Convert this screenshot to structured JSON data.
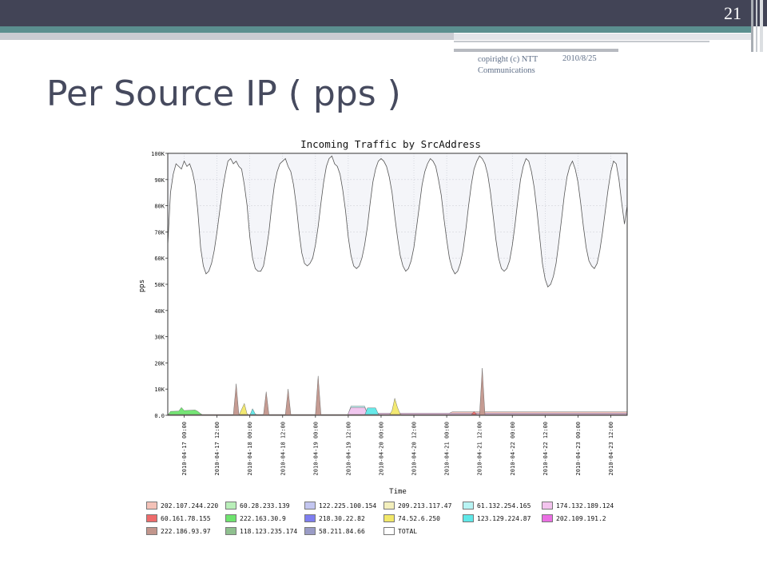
{
  "slide": {
    "number": "21",
    "copyright": "copiright (c) NTT Communications",
    "date": "2010/8/25",
    "title": "Per Source IP ( pps )"
  },
  "theme": {
    "header_dark": "#424456",
    "header_teal": "#5b8f8f",
    "title_color": "#464a5e"
  },
  "chart_data": {
    "type": "area",
    "title": "Incoming Traffic by SrcAddress",
    "xlabel": "Time",
    "ylabel": "pps",
    "ylim": [
      0,
      100000
    ],
    "grid": true,
    "legend_position": "bottom",
    "y_ticks": [
      {
        "value": 0,
        "label": "0.0"
      },
      {
        "value": 10000,
        "label": "10K"
      },
      {
        "value": 20000,
        "label": "20K"
      },
      {
        "value": 30000,
        "label": "30K"
      },
      {
        "value": 40000,
        "label": "40K"
      },
      {
        "value": 50000,
        "label": "50K"
      },
      {
        "value": 60000,
        "label": "60K"
      },
      {
        "value": 70000,
        "label": "70K"
      },
      {
        "value": 80000,
        "label": "80K"
      },
      {
        "value": 90000,
        "label": "90K"
      },
      {
        "value": 100000,
        "label": "100K"
      }
    ],
    "x_range_hours": [
      -6,
      162
    ],
    "x_ticks": [
      {
        "hour": 0,
        "label": "2010-04-17 00:00"
      },
      {
        "hour": 12,
        "label": "2010-04-17 12:00"
      },
      {
        "hour": 24,
        "label": "2010-04-18 00:00"
      },
      {
        "hour": 36,
        "label": "2010-04-18 12:00"
      },
      {
        "hour": 48,
        "label": "2010-04-19 00:00"
      },
      {
        "hour": 60,
        "label": "2010-04-19 12:00"
      },
      {
        "hour": 72,
        "label": "2010-04-20 00:00"
      },
      {
        "hour": 84,
        "label": "2010-04-20 12:00"
      },
      {
        "hour": 96,
        "label": "2010-04-21 00:00"
      },
      {
        "hour": 108,
        "label": "2010-04-21 12:00"
      },
      {
        "hour": 120,
        "label": "2010-04-22 00:00"
      },
      {
        "hour": 132,
        "label": "2010-04-22 12:00"
      },
      {
        "hour": 144,
        "label": "2010-04-23 00:00"
      },
      {
        "hour": 156,
        "label": "2010-04-23 12:00"
      }
    ],
    "total": {
      "name": "TOTAL",
      "points": [
        [
          -6,
          65000
        ],
        [
          -5,
          85000
        ],
        [
          -4,
          92000
        ],
        [
          -3,
          96000
        ],
        [
          -2,
          95000
        ],
        [
          -1,
          94000
        ],
        [
          0,
          97000
        ],
        [
          1,
          95000
        ],
        [
          2,
          96000
        ],
        [
          3,
          93000
        ],
        [
          4,
          88000
        ],
        [
          5,
          78000
        ],
        [
          6,
          64000
        ],
        [
          7,
          57000
        ],
        [
          8,
          54000
        ],
        [
          9,
          55000
        ],
        [
          10,
          58000
        ],
        [
          11,
          63000
        ],
        [
          12,
          70000
        ],
        [
          13,
          78000
        ],
        [
          14,
          86000
        ],
        [
          15,
          92000
        ],
        [
          16,
          97000
        ],
        [
          17,
          98000
        ],
        [
          18,
          96000
        ],
        [
          19,
          97000
        ],
        [
          20,
          95000
        ],
        [
          21,
          94000
        ],
        [
          22,
          88000
        ],
        [
          23,
          80000
        ],
        [
          24,
          68000
        ],
        [
          25,
          60000
        ],
        [
          26,
          56000
        ],
        [
          27,
          55000
        ],
        [
          28,
          55000
        ],
        [
          29,
          57000
        ],
        [
          30,
          63000
        ],
        [
          31,
          70000
        ],
        [
          32,
          80000
        ],
        [
          33,
          88000
        ],
        [
          34,
          93000
        ],
        [
          35,
          96000
        ],
        [
          36,
          97000
        ],
        [
          37,
          98000
        ],
        [
          38,
          95000
        ],
        [
          39,
          93000
        ],
        [
          40,
          88000
        ],
        [
          41,
          80000
        ],
        [
          42,
          70000
        ],
        [
          43,
          62000
        ],
        [
          44,
          58000
        ],
        [
          45,
          57000
        ],
        [
          46,
          58000
        ],
        [
          47,
          60000
        ],
        [
          48,
          65000
        ],
        [
          49,
          72000
        ],
        [
          50,
          81000
        ],
        [
          51,
          89000
        ],
        [
          52,
          95000
        ],
        [
          53,
          98000
        ],
        [
          54,
          99000
        ],
        [
          55,
          96000
        ],
        [
          56,
          95000
        ],
        [
          57,
          92000
        ],
        [
          58,
          86000
        ],
        [
          59,
          78000
        ],
        [
          60,
          68000
        ],
        [
          61,
          61000
        ],
        [
          62,
          57000
        ],
        [
          63,
          56000
        ],
        [
          64,
          57000
        ],
        [
          65,
          60000
        ],
        [
          66,
          65000
        ],
        [
          67,
          72000
        ],
        [
          68,
          81000
        ],
        [
          69,
          89000
        ],
        [
          70,
          94000
        ],
        [
          71,
          97000
        ],
        [
          72,
          98000
        ],
        [
          73,
          97000
        ],
        [
          74,
          95000
        ],
        [
          75,
          91000
        ],
        [
          76,
          85000
        ],
        [
          77,
          76000
        ],
        [
          78,
          68000
        ],
        [
          79,
          61000
        ],
        [
          80,
          57000
        ],
        [
          81,
          55000
        ],
        [
          82,
          56000
        ],
        [
          83,
          59000
        ],
        [
          84,
          64000
        ],
        [
          85,
          72000
        ],
        [
          86,
          80000
        ],
        [
          87,
          88000
        ],
        [
          88,
          93000
        ],
        [
          89,
          96000
        ],
        [
          90,
          98000
        ],
        [
          91,
          97000
        ],
        [
          92,
          95000
        ],
        [
          93,
          90000
        ],
        [
          94,
          84000
        ],
        [
          95,
          75000
        ],
        [
          96,
          67000
        ],
        [
          97,
          60000
        ],
        [
          98,
          56000
        ],
        [
          99,
          54000
        ],
        [
          100,
          55000
        ],
        [
          101,
          58000
        ],
        [
          102,
          63000
        ],
        [
          103,
          71000
        ],
        [
          104,
          80000
        ],
        [
          105,
          88000
        ],
        [
          106,
          94000
        ],
        [
          107,
          97000
        ],
        [
          108,
          99000
        ],
        [
          109,
          98000
        ],
        [
          110,
          96000
        ],
        [
          111,
          92000
        ],
        [
          112,
          85000
        ],
        [
          113,
          76000
        ],
        [
          114,
          67000
        ],
        [
          115,
          60000
        ],
        [
          116,
          56000
        ],
        [
          117,
          55000
        ],
        [
          118,
          56000
        ],
        [
          119,
          59000
        ],
        [
          120,
          65000
        ],
        [
          121,
          73000
        ],
        [
          122,
          82000
        ],
        [
          123,
          90000
        ],
        [
          124,
          95000
        ],
        [
          125,
          98000
        ],
        [
          126,
          97000
        ],
        [
          127,
          93000
        ],
        [
          128,
          87000
        ],
        [
          129,
          78000
        ],
        [
          130,
          68000
        ],
        [
          131,
          58000
        ],
        [
          132,
          52000
        ],
        [
          133,
          49000
        ],
        [
          134,
          50000
        ],
        [
          135,
          53000
        ],
        [
          136,
          58000
        ],
        [
          137,
          66000
        ],
        [
          138,
          75000
        ],
        [
          139,
          84000
        ],
        [
          140,
          91000
        ],
        [
          141,
          95000
        ],
        [
          142,
          97000
        ],
        [
          143,
          94000
        ],
        [
          144,
          89000
        ],
        [
          145,
          81000
        ],
        [
          146,
          72000
        ],
        [
          147,
          64000
        ],
        [
          148,
          59000
        ],
        [
          149,
          57000
        ],
        [
          150,
          56000
        ],
        [
          151,
          58000
        ],
        [
          152,
          63000
        ],
        [
          153,
          70000
        ],
        [
          154,
          78000
        ],
        [
          155,
          86000
        ],
        [
          156,
          93000
        ],
        [
          157,
          97000
        ],
        [
          158,
          96000
        ],
        [
          159,
          90000
        ],
        [
          160,
          81000
        ],
        [
          161,
          73000
        ],
        [
          162,
          80000
        ]
      ]
    },
    "series": [
      {
        "name": "202.107.244.220",
        "color": "#f4c2b8",
        "points": [
          [
            96,
            300
          ],
          [
            98,
            1300
          ],
          [
            162,
            1300
          ]
        ]
      },
      {
        "name": "60.28.233.139",
        "color": "#b9efb9",
        "points": [
          [
            -6,
            200
          ],
          [
            162,
            200
          ]
        ]
      },
      {
        "name": "122.225.100.154",
        "color": "#c3c6f0",
        "points": [
          [
            -6,
            100
          ],
          [
            162,
            100
          ]
        ]
      },
      {
        "name": "209.213.117.47",
        "color": "#f3efbc",
        "points": [
          [
            -6,
            100
          ],
          [
            162,
            100
          ]
        ]
      },
      {
        "name": "61.132.254.165",
        "color": "#b8f4f4",
        "points": [
          [
            60,
            600
          ],
          [
            61,
            3500
          ],
          [
            66,
            3500
          ],
          [
            67,
            600
          ],
          [
            162,
            600
          ]
        ]
      },
      {
        "name": "174.132.189.124",
        "color": "#f3c4ee",
        "points": [
          [
            60,
            800
          ],
          [
            61,
            3000
          ],
          [
            66,
            3000
          ],
          [
            67,
            800
          ],
          [
            162,
            800
          ]
        ]
      },
      {
        "name": "60.161.78.155",
        "color": "#ee6b6b",
        "points": [
          [
            -6,
            200
          ],
          [
            105,
            200
          ],
          [
            106,
            1500
          ],
          [
            107,
            200
          ],
          [
            162,
            200
          ]
        ]
      },
      {
        "name": "222.163.30.9",
        "color": "#6ee46e",
        "points": [
          [
            -6,
            0
          ],
          [
            -5,
            1500
          ],
          [
            -2,
            1600
          ],
          [
            -1,
            3000
          ],
          [
            0,
            1800
          ],
          [
            4,
            2000
          ],
          [
            5,
            1500
          ],
          [
            6,
            600
          ],
          [
            7,
            0
          ],
          [
            162,
            0
          ]
        ]
      },
      {
        "name": "218.30.22.82",
        "color": "#7e7ef0",
        "points": [
          [
            -6,
            100
          ],
          [
            162,
            100
          ]
        ]
      },
      {
        "name": "74.52.6.250",
        "color": "#f2e869",
        "points": [
          [
            20,
            0
          ],
          [
            22,
            4500
          ],
          [
            23,
            500
          ],
          [
            24,
            0
          ],
          [
            75,
            0
          ],
          [
            76,
            1800
          ],
          [
            77,
            6500
          ],
          [
            78,
            3000
          ],
          [
            79,
            500
          ],
          [
            80,
            0
          ],
          [
            162,
            0
          ]
        ]
      },
      {
        "name": "123.129.224.87",
        "color": "#5fe8e8",
        "points": [
          [
            -6,
            0
          ],
          [
            24,
            0
          ],
          [
            25,
            2500
          ],
          [
            26,
            500
          ],
          [
            27,
            0
          ],
          [
            66,
            0
          ],
          [
            67,
            2800
          ],
          [
            70,
            2800
          ],
          [
            71,
            500
          ],
          [
            72,
            0
          ],
          [
            162,
            0
          ]
        ]
      },
      {
        "name": "202.109.191.2",
        "color": "#ea6fe3",
        "points": [
          [
            -6,
            0
          ],
          [
            162,
            0
          ]
        ]
      },
      {
        "name": "222.186.93.97",
        "color": "#c2968c",
        "points": [
          [
            -6,
            300
          ],
          [
            18,
            300
          ],
          [
            19,
            12000
          ],
          [
            20,
            300
          ],
          [
            29,
            300
          ],
          [
            30,
            9000
          ],
          [
            31,
            300
          ],
          [
            37,
            300
          ],
          [
            38,
            10000
          ],
          [
            39,
            300
          ],
          [
            48,
            300
          ],
          [
            49,
            15000
          ],
          [
            50,
            300
          ],
          [
            96,
            300
          ],
          [
            108,
            300
          ],
          [
            109,
            18000
          ],
          [
            110,
            300
          ],
          [
            162,
            300
          ]
        ]
      },
      {
        "name": "118.123.235.174",
        "color": "#8fc08f",
        "points": [
          [
            -6,
            100
          ],
          [
            162,
            100
          ]
        ]
      },
      {
        "name": "58.211.84.66",
        "color": "#9a9cc6",
        "points": [
          [
            -6,
            0
          ],
          [
            162,
            0
          ]
        ]
      },
      {
        "name": "TOTAL",
        "color": "#ffffff",
        "points": []
      }
    ]
  }
}
